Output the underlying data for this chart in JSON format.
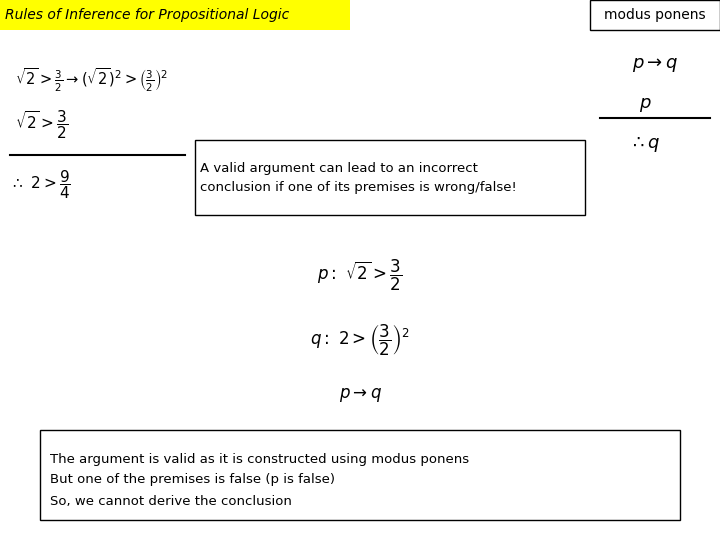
{
  "title": "Rules of Inference for Propositional Logic",
  "title_bg": "#ffff00",
  "modus_ponens_label": "modus ponens",
  "bg_color": "#ffffff",
  "top_formula": "$\\sqrt{2} > \\frac{3}{2} \\rightarrow (\\sqrt{2})^2 > \\left(\\frac{3}{2}\\right)^2$",
  "premise1": "$\\sqrt{2} > \\dfrac{3}{2}$",
  "conclusion": "$\\therefore\\ 2 > \\dfrac{9}{4}$",
  "callout_text": "A valid argument can lead to an incorrect\nconclusion if one of its premises is wrong/false!",
  "mp_formula1": "$p \\rightarrow q$",
  "mp_p": "$p$",
  "mp_therefore_q": "$\\therefore q$",
  "center_p": "$p:\\  \\sqrt{2} > \\dfrac{3}{2}$",
  "center_q": "$q:\\  2 > \\left(\\dfrac{3}{2}\\right)^2$",
  "center_arrow": "$p \\rightarrow q$",
  "bottom_text": "The argument is valid as it is constructed using modus ponens\nBut one of the premises is false (p is false)\nSo, we cannot derive the conclusion"
}
